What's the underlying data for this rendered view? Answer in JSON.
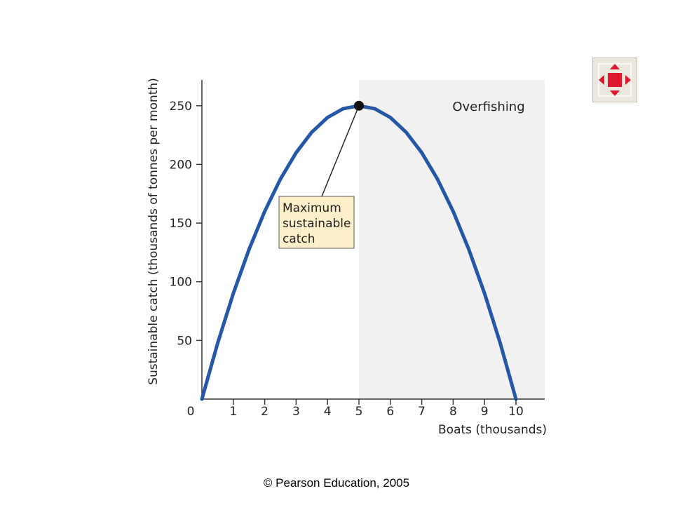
{
  "chart_data": {
    "type": "line",
    "xlabel": "Boats  (thousands)",
    "ylabel": "Sustainable catch  (thousands of tonnes per month)",
    "xlim": [
      0,
      10.9
    ],
    "ylim": [
      0,
      270
    ],
    "x_ticks": [
      0,
      1,
      2,
      3,
      4,
      5,
      6,
      7,
      8,
      9,
      10
    ],
    "y_ticks": [
      50,
      100,
      150,
      200,
      250
    ],
    "series": [
      {
        "color": "#2457a6",
        "x": [
          0,
          0.5,
          1,
          1.5,
          2,
          2.5,
          3,
          3.5,
          4,
          4.5,
          5,
          5.5,
          6,
          6.5,
          7,
          7.5,
          8,
          8.5,
          9,
          9.5,
          10
        ],
        "y": [
          0,
          47.5,
          90,
          127.5,
          160,
          187.5,
          210,
          227.5,
          240,
          247.5,
          250,
          247.5,
          240,
          227.5,
          210,
          187.5,
          160,
          127.5,
          90,
          47.5,
          0
        ]
      }
    ],
    "shaded_region": {
      "x_from": 5,
      "label": "Overfishing",
      "color": "#f1f1f1"
    },
    "annotation": {
      "point": {
        "x": 5,
        "y": 250
      },
      "lines": [
        "Maximum",
        "sustainable",
        "catch"
      ],
      "box_color": "#fdf0c8"
    },
    "grid": false
  },
  "footer": {
    "copyright": "© Pearson Education, 2005"
  },
  "icons": {
    "fullscreen": "fullscreen-arrows-icon",
    "accent": "#e0182d"
  }
}
